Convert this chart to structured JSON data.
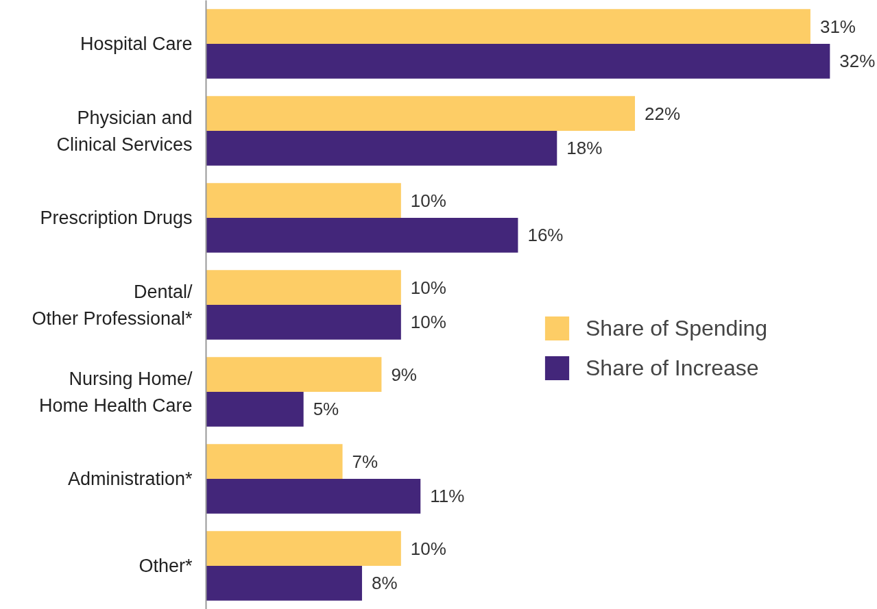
{
  "chart_data": {
    "type": "bar",
    "orientation": "horizontal",
    "legend": "right",
    "grid": false,
    "categories": [
      "Hospital Care",
      "Physician and\nClinical Services",
      "Prescription Drugs",
      "Dental/\nOther Professional*",
      "Nursing Home/\nHome Health Care",
      "Administration*",
      "Other*"
    ],
    "series": [
      {
        "name": "Share of Spending",
        "color": "#fdcd66",
        "values": [
          31,
          22,
          10,
          10,
          9,
          7,
          10
        ],
        "value_labels": [
          "31%",
          "22%",
          "10%",
          "10%",
          "9%",
          "7%",
          "10%"
        ]
      },
      {
        "name": "Share of Increase",
        "color": "#43267a",
        "values": [
          32,
          18,
          16,
          10,
          5,
          11,
          8
        ],
        "value_labels": [
          "32%",
          "18%",
          "16%",
          "10%",
          "5%",
          "11%",
          "8%"
        ]
      }
    ]
  }
}
